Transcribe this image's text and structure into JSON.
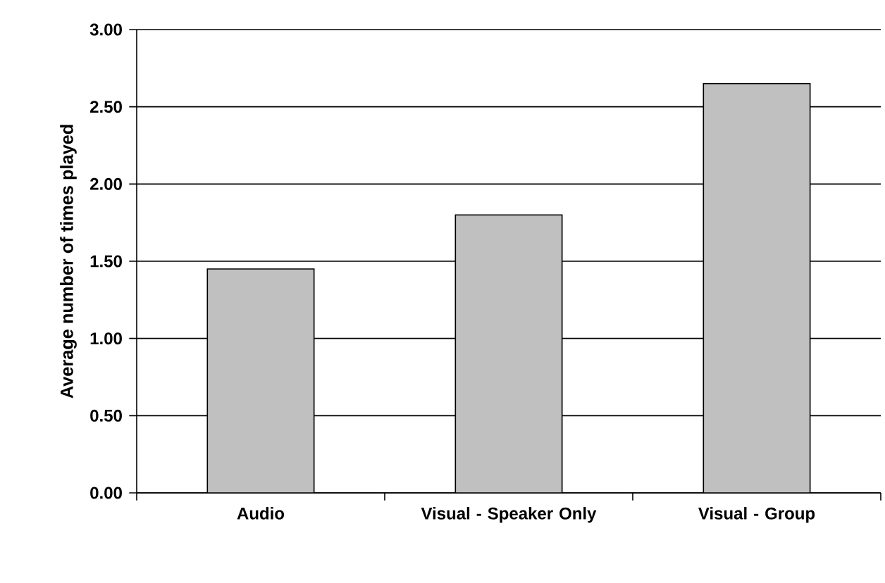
{
  "chart_data": {
    "type": "bar",
    "ylabel": "Average number of times played",
    "categories": [
      "Audio",
      "Visual - Speaker Only",
      "Visual - Group"
    ],
    "values": [
      1.45,
      1.8,
      2.65
    ],
    "color": "#c0c0c0",
    "ylim": [
      0,
      3
    ],
    "yticks": [
      {
        "value": 0,
        "label": "0.00"
      },
      {
        "value": 0.5,
        "label": "0.50"
      },
      {
        "value": 1,
        "label": "1.00"
      },
      {
        "value": 1.5,
        "label": "1.50"
      },
      {
        "value": 2,
        "label": "2.00"
      },
      {
        "value": 2.5,
        "label": "2.50"
      },
      {
        "value": 3,
        "label": "3.00"
      }
    ],
    "grid": "y"
  }
}
